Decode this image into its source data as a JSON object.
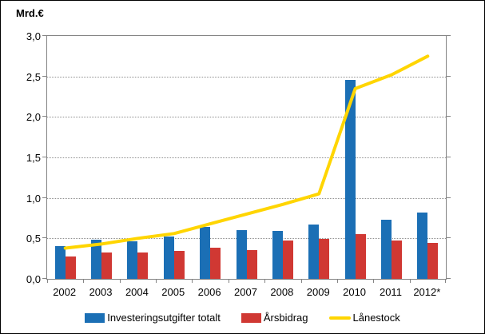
{
  "unit_label": "Mrd.€",
  "colors": {
    "bar_blue": "#1B6FB5",
    "bar_red": "#D03833",
    "line_yellow": "#FFD500",
    "axis_border": "#848484",
    "gridline": "#909090",
    "text": "#000000",
    "page_border": "#000000"
  },
  "chart_data": {
    "type": "bar",
    "title": "Mrd.€",
    "xlabel": "",
    "ylabel": "Mrd.€",
    "categories": [
      "2002",
      "2003",
      "2004",
      "2005",
      "2006",
      "2007",
      "2008",
      "2009",
      "2010",
      "2011",
      "2012*"
    ],
    "series": [
      {
        "name": "Investeringsutgifter totalt",
        "kind": "bar",
        "color": "#1B6FB5",
        "values": [
          0.4,
          0.48,
          0.46,
          0.52,
          0.64,
          0.6,
          0.59,
          0.67,
          2.46,
          0.73,
          0.82
        ]
      },
      {
        "name": "Årsbidrag",
        "kind": "bar",
        "color": "#D03833",
        "values": [
          0.28,
          0.33,
          0.33,
          0.35,
          0.38,
          0.36,
          0.47,
          0.49,
          0.55,
          0.47,
          0.44
        ]
      },
      {
        "name": "Lånestock",
        "kind": "line",
        "color": "#FFD500",
        "values": [
          0.38,
          0.43,
          0.5,
          0.56,
          0.68,
          0.8,
          0.92,
          1.05,
          2.35,
          2.52,
          2.75
        ]
      }
    ],
    "ylim": [
      0,
      3
    ],
    "ytick_step": 0.5,
    "ytick_labels": [
      "0,0",
      "0,5",
      "1,0",
      "1,5",
      "2,0",
      "2,5",
      "3,0"
    ],
    "grid": true,
    "legend_position": "bottom"
  }
}
